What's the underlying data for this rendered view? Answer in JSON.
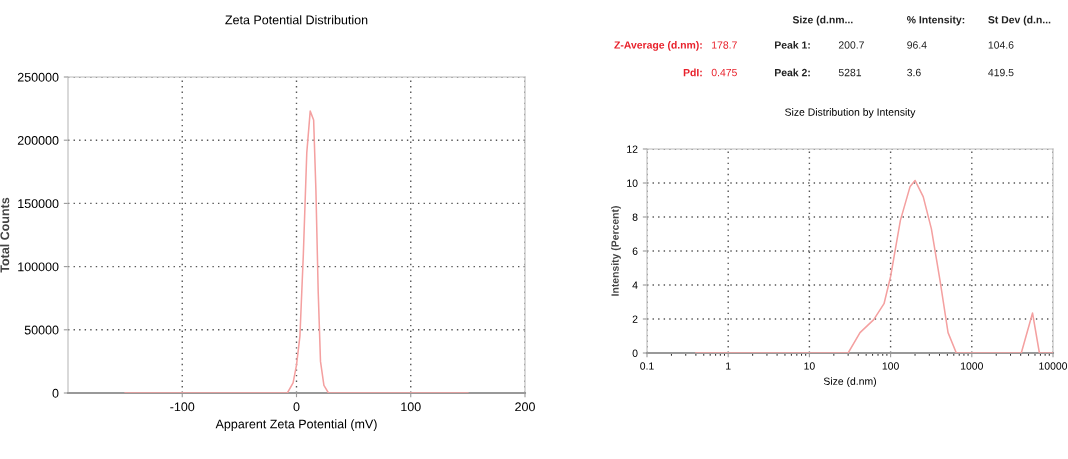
{
  "chart_data": [
    {
      "type": "line",
      "title": "Zeta Potential Distribution",
      "xlabel": "Apparent Zeta Potential (mV)",
      "ylabel": "Total Counts",
      "xlim": [
        -200,
        200
      ],
      "xticks": [
        -100,
        0,
        100,
        200
      ],
      "ylim": [
        0,
        250000
      ],
      "yticks": [
        0,
        50000,
        100000,
        150000,
        200000,
        250000
      ],
      "grid": true,
      "legend": false,
      "marker": "none",
      "line_style": "solid",
      "series": [
        {
          "color": "#f4a0a0",
          "x": [
            -150,
            -8,
            -3,
            0,
            3,
            6,
            9,
            12,
            15,
            17,
            19,
            21,
            24,
            28,
            150
          ],
          "values": [
            0,
            0,
            8000,
            22000,
            45000,
            110000,
            190000,
            223000,
            216000,
            160000,
            80000,
            25000,
            6000,
            0,
            0
          ]
        }
      ]
    },
    {
      "type": "line",
      "title": "Size Distribution by Intensity",
      "xlabel": "Size (d.nm)",
      "ylabel": "Intensity (Percent)",
      "log": "x",
      "xlim": [
        0.1,
        10000
      ],
      "xticks": [
        0.1,
        1,
        10,
        100,
        1000,
        10000
      ],
      "ylim": [
        0,
        12
      ],
      "yticks": [
        0,
        2,
        4,
        6,
        8,
        10,
        12
      ],
      "grid": true,
      "legend": false,
      "marker": "none",
      "line_style": "solid",
      "series": [
        {
          "color": "#f4a0a0",
          "x": [
            0.4,
            30,
            42,
            62,
            83,
            100,
            132,
            174,
            200,
            252,
            318,
            405,
            510,
            645,
            4070,
            5600,
            6800,
            10000
          ],
          "values": [
            0,
            0,
            1.2,
            1.96,
            2.9,
            4.5,
            7.8,
            9.8,
            10.15,
            9.2,
            7.3,
            4.3,
            1.2,
            0,
            0,
            2.35,
            0,
            0
          ]
        }
      ],
      "annotations": [
        "Size (d.nm...",
        "% Intensity:",
        "St Dev (d.n...",
        "Z-Average (d.nm):",
        "178.7",
        "PdI:",
        "0.475",
        "Peak 1:",
        "200.7",
        "96.4",
        "104.6",
        "Peak 2:",
        "5281",
        "3.6",
        "419.5"
      ]
    }
  ]
}
